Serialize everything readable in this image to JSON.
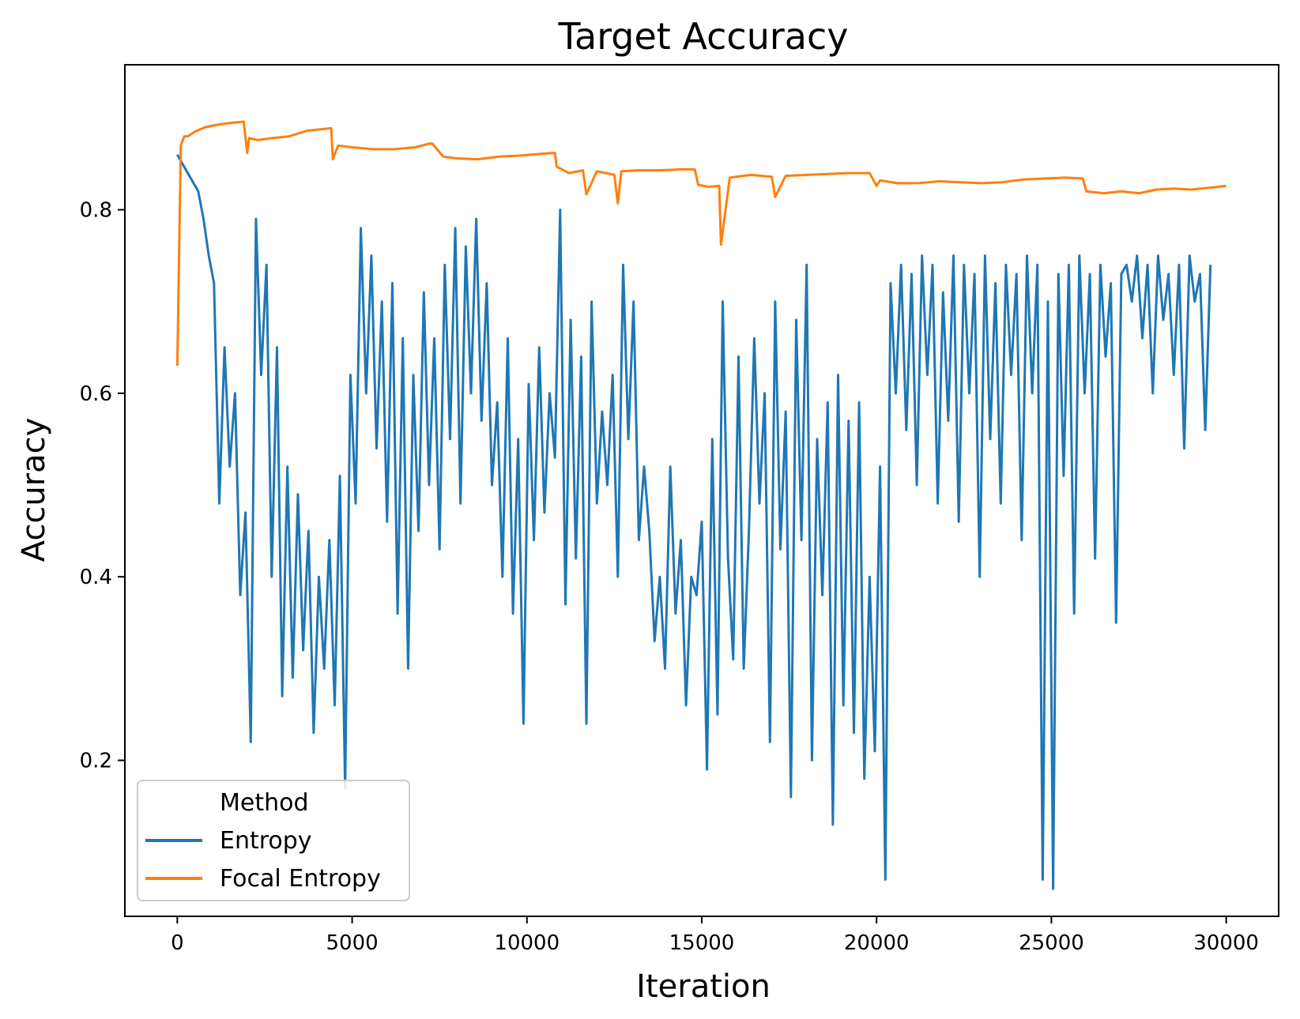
{
  "chart_data": {
    "type": "line",
    "title": "Target Accuracy",
    "xlabel": "Iteration",
    "ylabel": "Accuracy",
    "xlim": [
      -1500,
      31500
    ],
    "ylim": [
      0.03,
      0.958
    ],
    "xticks": [
      0,
      5000,
      10000,
      15000,
      20000,
      25000,
      30000
    ],
    "xtick_labels": [
      "0",
      "5000",
      "10000",
      "15000",
      "20000",
      "25000",
      "30000"
    ],
    "yticks": [
      0.2,
      0.4,
      0.6,
      0.8
    ],
    "ytick_labels": [
      "0.2",
      "0.4",
      "0.6",
      "0.8"
    ],
    "grid": false,
    "legend": {
      "title": "Method",
      "placement": "lower-left",
      "entries": [
        "Entropy",
        "Focal Entropy"
      ]
    },
    "series": [
      {
        "name": "Entropy",
        "color": "#1f77b4",
        "x": [
          0,
          150,
          300,
          450,
          600,
          750,
          900,
          1050,
          1200,
          1350,
          1500,
          1650,
          1800,
          1950,
          2100,
          2250,
          2400,
          2550,
          2700,
          2850,
          3000,
          3150,
          3300,
          3450,
          3600,
          3750,
          3900,
          4050,
          4200,
          4350,
          4500,
          4650,
          4800,
          4950,
          5100,
          5250,
          5400,
          5550,
          5700,
          5850,
          6000,
          6150,
          6300,
          6450,
          6600,
          6750,
          6900,
          7050,
          7200,
          7350,
          7500,
          7650,
          7800,
          7950,
          8100,
          8250,
          8400,
          8550,
          8700,
          8850,
          9000,
          9150,
          9300,
          9450,
          9600,
          9750,
          9900,
          10050,
          10200,
          10350,
          10500,
          10650,
          10800,
          10950,
          11100,
          11250,
          11400,
          11550,
          11700,
          11850,
          12000,
          12150,
          12300,
          12450,
          12600,
          12750,
          12900,
          13050,
          13200,
          13350,
          13500,
          13650,
          13800,
          13950,
          14100,
          14250,
          14400,
          14550,
          14700,
          14850,
          15000,
          15150,
          15300,
          15450,
          15600,
          15750,
          15900,
          16050,
          16200,
          16350,
          16500,
          16650,
          16800,
          16950,
          17100,
          17250,
          17400,
          17550,
          17700,
          17850,
          18000,
          18150,
          18300,
          18450,
          18600,
          18750,
          18900,
          19050,
          19200,
          19350,
          19500,
          19650,
          19800,
          19950,
          20100,
          20250,
          20400,
          20550,
          20700,
          20850,
          21000,
          21150,
          21300,
          21450,
          21600,
          21750,
          21900,
          22050,
          22200,
          22350,
          22500,
          22650,
          22800,
          22950,
          23100,
          23250,
          23400,
          23550,
          23700,
          23850,
          24000,
          24150,
          24300,
          24450,
          24600,
          24750,
          24900,
          25050,
          25200,
          25350,
          25500,
          25650,
          25800,
          25950,
          26100,
          26250,
          26400,
          26550,
          26700,
          26850,
          27000,
          27150,
          27300,
          27450,
          27600,
          27750,
          27900,
          28050,
          28200,
          28350,
          28500,
          28650,
          28800,
          28950,
          29100,
          29250,
          29400,
          29550
        ],
        "y": [
          0.86,
          0.85,
          0.84,
          0.83,
          0.82,
          0.79,
          0.75,
          0.72,
          0.48,
          0.65,
          0.52,
          0.6,
          0.38,
          0.47,
          0.22,
          0.79,
          0.62,
          0.74,
          0.4,
          0.65,
          0.27,
          0.52,
          0.29,
          0.49,
          0.32,
          0.45,
          0.23,
          0.4,
          0.3,
          0.44,
          0.26,
          0.51,
          0.17,
          0.62,
          0.48,
          0.78,
          0.6,
          0.75,
          0.54,
          0.7,
          0.46,
          0.72,
          0.36,
          0.66,
          0.3,
          0.62,
          0.45,
          0.71,
          0.5,
          0.66,
          0.43,
          0.74,
          0.55,
          0.78,
          0.48,
          0.76,
          0.6,
          0.79,
          0.57,
          0.72,
          0.5,
          0.59,
          0.4,
          0.66,
          0.36,
          0.55,
          0.24,
          0.61,
          0.44,
          0.65,
          0.47,
          0.6,
          0.53,
          0.8,
          0.37,
          0.68,
          0.42,
          0.64,
          0.24,
          0.7,
          0.48,
          0.58,
          0.5,
          0.62,
          0.4,
          0.74,
          0.55,
          0.7,
          0.44,
          0.52,
          0.45,
          0.33,
          0.4,
          0.3,
          0.52,
          0.36,
          0.44,
          0.26,
          0.4,
          0.38,
          0.46,
          0.19,
          0.55,
          0.25,
          0.7,
          0.42,
          0.31,
          0.64,
          0.3,
          0.45,
          0.66,
          0.48,
          0.6,
          0.22,
          0.7,
          0.43,
          0.58,
          0.16,
          0.68,
          0.44,
          0.74,
          0.2,
          0.55,
          0.38,
          0.59,
          0.13,
          0.62,
          0.26,
          0.57,
          0.23,
          0.59,
          0.18,
          0.4,
          0.21,
          0.52,
          0.07,
          0.72,
          0.6,
          0.74,
          0.56,
          0.73,
          0.5,
          0.75,
          0.62,
          0.74,
          0.48,
          0.71,
          0.57,
          0.75,
          0.46,
          0.74,
          0.6,
          0.73,
          0.4,
          0.75,
          0.55,
          0.72,
          0.48,
          0.74,
          0.62,
          0.73,
          0.44,
          0.75,
          0.6,
          0.74,
          0.07,
          0.7,
          0.06,
          0.73,
          0.51,
          0.74,
          0.36,
          0.75,
          0.6,
          0.73,
          0.42,
          0.74,
          0.64,
          0.72,
          0.35,
          0.73,
          0.74,
          0.7,
          0.75,
          0.66,
          0.74,
          0.6,
          0.75,
          0.68,
          0.73,
          0.62,
          0.74,
          0.54,
          0.75,
          0.7,
          0.73,
          0.56,
          0.74
        ]
      },
      {
        "name": "Focal Entropy",
        "color": "#ff7f0e",
        "x": [
          0,
          100,
          200,
          300,
          500,
          800,
          1200,
          1600,
          1900,
          2000,
          2050,
          2300,
          2700,
          3200,
          3700,
          4200,
          4400,
          4450,
          4600,
          5000,
          5600,
          6200,
          6800,
          7200,
          7300,
          7600,
          8000,
          8600,
          9200,
          9800,
          10400,
          10800,
          10850,
          11200,
          11600,
          11700,
          12000,
          12500,
          12600,
          12700,
          13200,
          13800,
          14400,
          14800,
          14900,
          15200,
          15500,
          15550,
          15800,
          16400,
          17000,
          17100,
          17400,
          18000,
          18600,
          19200,
          19800,
          20000,
          20100,
          20600,
          21200,
          21800,
          22400,
          23000,
          23600,
          24200,
          24800,
          25400,
          25900,
          26000,
          26500,
          27000,
          27500,
          28000,
          28500,
          29000,
          29500,
          30000
        ],
        "y": [
          0.63,
          0.87,
          0.88,
          0.88,
          0.885,
          0.89,
          0.893,
          0.895,
          0.896,
          0.862,
          0.878,
          0.876,
          0.878,
          0.88,
          0.886,
          0.888,
          0.889,
          0.855,
          0.87,
          0.868,
          0.866,
          0.866,
          0.868,
          0.872,
          0.872,
          0.858,
          0.856,
          0.855,
          0.858,
          0.859,
          0.861,
          0.862,
          0.847,
          0.84,
          0.843,
          0.817,
          0.842,
          0.838,
          0.807,
          0.842,
          0.843,
          0.843,
          0.844,
          0.844,
          0.827,
          0.825,
          0.826,
          0.762,
          0.835,
          0.838,
          0.836,
          0.814,
          0.837,
          0.838,
          0.839,
          0.84,
          0.84,
          0.826,
          0.832,
          0.829,
          0.829,
          0.831,
          0.83,
          0.829,
          0.83,
          0.833,
          0.834,
          0.835,
          0.834,
          0.82,
          0.818,
          0.82,
          0.818,
          0.822,
          0.823,
          0.822,
          0.824,
          0.826
        ]
      }
    ]
  }
}
